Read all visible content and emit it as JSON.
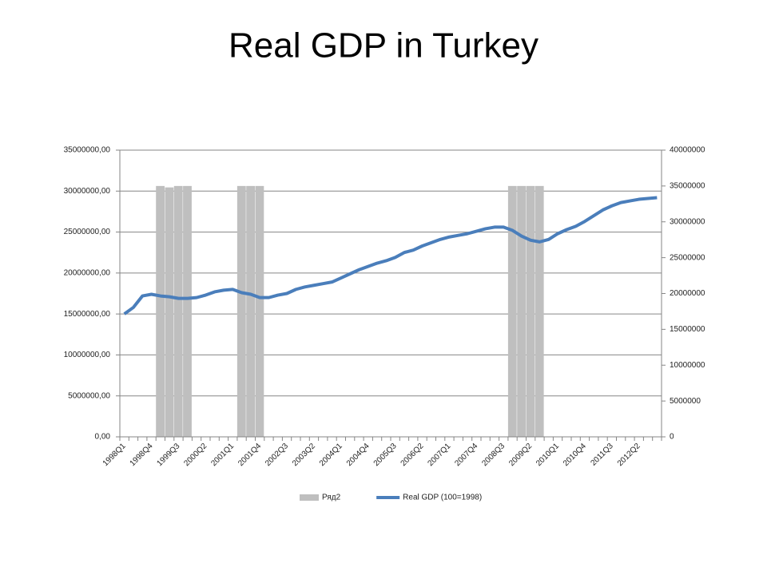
{
  "chart_data": {
    "type": "bar-line",
    "title": "Real GDP in Turkey",
    "categories": [
      "1998Q1",
      null,
      null,
      "1998Q4",
      null,
      null,
      "1999Q3",
      null,
      null,
      "2000Q2",
      null,
      null,
      "2001Q1",
      null,
      null,
      "2001Q4",
      null,
      null,
      "2002Q3",
      null,
      null,
      "2003Q2",
      null,
      null,
      "2004Q1",
      null,
      null,
      "2004Q4",
      null,
      null,
      "2005Q3",
      null,
      null,
      "2006Q2",
      null,
      null,
      "2007Q1",
      null,
      null,
      "2007Q4",
      null,
      null,
      "2008Q3",
      null,
      null,
      "2009Q2",
      null,
      null,
      "2010Q1",
      null,
      null,
      "2010Q4",
      null,
      null,
      "2011Q3",
      null,
      null,
      "2012Q2",
      null,
      null
    ],
    "series": [
      {
        "name": "Ряд2",
        "type": "bar",
        "axis": "y2",
        "color": "#bfbfbf",
        "values": [
          null,
          null,
          null,
          null,
          35000000,
          34800000,
          35000000,
          35000000,
          null,
          null,
          null,
          null,
          null,
          35000000,
          35000000,
          35000000,
          null,
          null,
          null,
          null,
          null,
          null,
          null,
          null,
          null,
          null,
          null,
          null,
          null,
          null,
          null,
          null,
          null,
          null,
          null,
          null,
          null,
          null,
          null,
          null,
          null,
          null,
          null,
          35000000,
          35000000,
          35000000,
          35000000,
          null,
          null,
          null,
          null,
          null,
          null,
          null,
          null,
          null,
          null,
          null,
          null,
          null
        ]
      },
      {
        "name": "Real GDP (100=1998)",
        "type": "line",
        "color": "#4a7ebb",
        "values": [
          15000000,
          15800000,
          17200000,
          17400000,
          17200000,
          17100000,
          16900000,
          16900000,
          17000000,
          17300000,
          17700000,
          17900000,
          18000000,
          17600000,
          17400000,
          17000000,
          17000000,
          17300000,
          17500000,
          18000000,
          18300000,
          18500000,
          18700000,
          18900000,
          19400000,
          19900000,
          20400000,
          20800000,
          21200000,
          21500000,
          21900000,
          22500000,
          22800000,
          23300000,
          23700000,
          24100000,
          24400000,
          24600000,
          24800000,
          25100000,
          25400000,
          25600000,
          25600000,
          25200000,
          24500000,
          24000000,
          23800000,
          24100000,
          24800000,
          25300000,
          25700000,
          26300000,
          27000000,
          27700000,
          28200000,
          28600000,
          28800000,
          29000000,
          29100000,
          29200000
        ]
      }
    ],
    "ylim": [
      0,
      35000000
    ],
    "yticks": [
      {
        "value": 0,
        "label": "0,00"
      },
      {
        "value": 5000000,
        "label": "5000000,00"
      },
      {
        "value": 10000000,
        "label": "10000000,00"
      },
      {
        "value": 15000000,
        "label": "15000000,00"
      },
      {
        "value": 20000000,
        "label": "20000000,00"
      },
      {
        "value": 25000000,
        "label": "25000000,00"
      },
      {
        "value": 30000000,
        "label": "30000000,00"
      },
      {
        "value": 35000000,
        "label": "35000000,00"
      }
    ],
    "y2lim": [
      0,
      40000000
    ],
    "y2ticks": [
      0,
      5000000,
      10000000,
      15000000,
      20000000,
      25000000,
      30000000,
      35000000,
      40000000
    ],
    "grid": true,
    "legend": "bottom"
  }
}
